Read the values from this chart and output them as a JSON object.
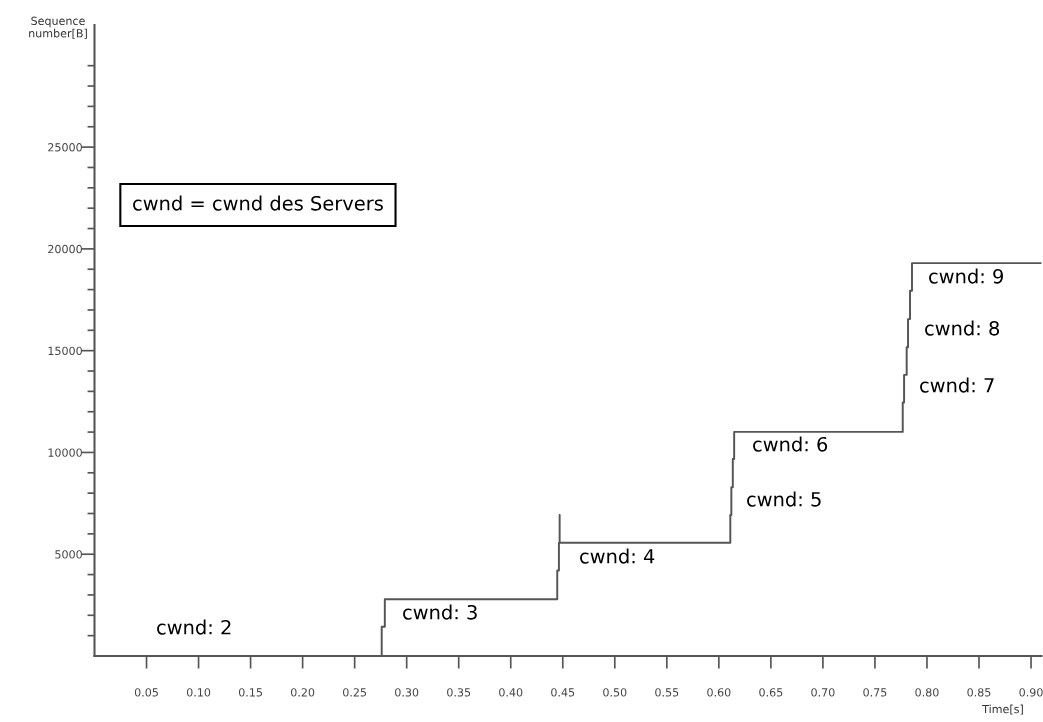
{
  "chart_data": {
    "type": "line",
    "xlabel": "Time[s]",
    "ylabel": "Sequence\nnumber[B]",
    "x": [
      0,
      0.276,
      0.276,
      0.279,
      0.279,
      0.4447,
      0.4447,
      0.4463,
      0.4463,
      0.447,
      0.447,
      0.447,
      0.611,
      0.611,
      0.612,
      0.612,
      0.6134,
      0.6134,
      0.6147,
      0.6147,
      0.7767,
      0.7767,
      0.778,
      0.778,
      0.7805,
      0.7805,
      0.7818,
      0.7818,
      0.7837,
      0.7837,
      0.7856,
      0.7856,
      0.91
    ],
    "series": [
      {
        "color": "#555555",
        "values": [
          0,
          0,
          1440,
          1440,
          2790,
          2790,
          4200,
          4200,
          5560,
          5560,
          6930,
          5560,
          5560,
          6930,
          6930,
          8290,
          8290,
          9680,
          9680,
          11010,
          11010,
          12450,
          12450,
          13810,
          13810,
          15170,
          15170,
          16550,
          16550,
          17940,
          17940,
          19300,
          19300
        ]
      }
    ],
    "xlim": [
      0,
      0.91
    ],
    "ylim": [
      0,
      31000
    ],
    "xticks": [
      {
        "value": 0.05,
        "label": "0.05"
      },
      {
        "value": 0.1,
        "label": "0.10"
      },
      {
        "value": 0.15,
        "label": "0.15"
      },
      {
        "value": 0.2,
        "label": "0.20"
      },
      {
        "value": 0.25,
        "label": "0.25"
      },
      {
        "value": 0.3,
        "label": "0.30"
      },
      {
        "value": 0.35,
        "label": "0.35"
      },
      {
        "value": 0.4,
        "label": "0.40"
      },
      {
        "value": 0.45,
        "label": "0.45"
      },
      {
        "value": 0.5,
        "label": "0.50"
      },
      {
        "value": 0.55,
        "label": "0.55"
      },
      {
        "value": 0.6,
        "label": "0.60"
      },
      {
        "value": 0.65,
        "label": "0.65"
      },
      {
        "value": 0.7,
        "label": "0.70"
      },
      {
        "value": 0.75,
        "label": "0.75"
      },
      {
        "value": 0.8,
        "label": "0.80"
      },
      {
        "value": 0.85,
        "label": "0.85"
      },
      {
        "value": 0.9,
        "label": "0.90"
      }
    ],
    "yticks": [
      {
        "value": 1000,
        "label": null
      },
      {
        "value": 2000,
        "label": null
      },
      {
        "value": 3000,
        "label": null
      },
      {
        "value": 4000,
        "label": null
      },
      5000,
      {
        "value": 6000,
        "label": null
      },
      {
        "value": 7000,
        "label": null
      },
      {
        "value": 8000,
        "label": null
      },
      {
        "value": 9000,
        "label": null
      },
      10000,
      {
        "value": 11000,
        "label": null
      },
      {
        "value": 12000,
        "label": null
      },
      {
        "value": 13000,
        "label": null
      },
      {
        "value": 14000,
        "label": null
      },
      15000,
      {
        "value": 16000,
        "label": null
      },
      {
        "value": 17000,
        "label": null
      },
      {
        "value": 18000,
        "label": null
      },
      {
        "value": 19000,
        "label": null
      },
      20000,
      {
        "value": 21000,
        "label": null
      },
      {
        "value": 22000,
        "label": null
      },
      {
        "value": 23000,
        "label": null
      },
      {
        "value": 24000,
        "label": null
      },
      25000,
      {
        "value": 26000,
        "label": null
      },
      {
        "value": 27000,
        "label": null
      },
      {
        "value": 28000,
        "label": null
      },
      {
        "value": 29000,
        "label": null
      }
    ],
    "annotations": [
      "cwnd = cwnd des Servers",
      "cwnd: 2",
      "cwnd: 3",
      "cwnd: 4",
      "cwnd: 5",
      "cwnd: 6",
      "cwnd: 7",
      "cwnd: 8",
      "cwnd: 9"
    ]
  }
}
